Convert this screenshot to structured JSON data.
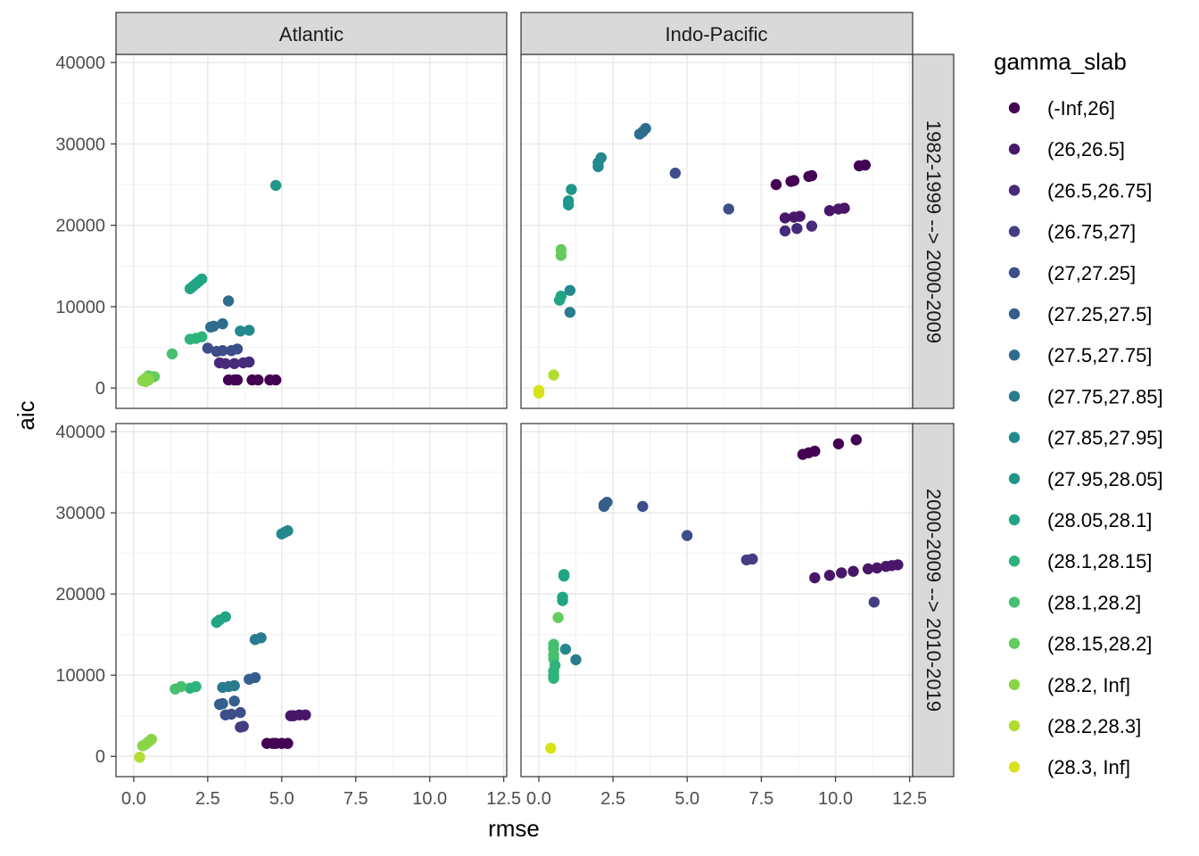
{
  "chart_data": {
    "type": "scatter",
    "facets": {
      "columns": [
        "Atlantic",
        "Indo-Pacific"
      ],
      "rows": [
        "1982-1999 --> 2000-2009",
        "2000-2009 --> 2010-2019"
      ]
    },
    "xlabel": "rmse",
    "ylabel": "aic",
    "xlim": [
      -0.6,
      12.6
    ],
    "ylim": [
      -2500,
      41000
    ],
    "x_ticks": [
      0.0,
      2.5,
      5.0,
      7.5,
      10.0,
      12.5
    ],
    "x_tick_labels": [
      "0.0",
      "2.5",
      "5.0",
      "7.5",
      "10.0",
      "12.5"
    ],
    "y_ticks": [
      0,
      10000,
      20000,
      30000,
      40000
    ],
    "y_tick_labels": [
      "0",
      "10000",
      "20000",
      "30000",
      "40000"
    ],
    "grid": true,
    "legend": {
      "title": "gamma_slab",
      "position": "right",
      "entries": [
        {
          "label": "(-Inf,26]",
          "color": "#440154"
        },
        {
          "label": "(26,26.5]",
          "color": "#481769"
        },
        {
          "label": "(26.5,26.75]",
          "color": "#472A7A"
        },
        {
          "label": "(26.75,27]",
          "color": "#433D84"
        },
        {
          "label": "(27,27.25]",
          "color": "#3D4E8A"
        },
        {
          "label": "(27.25,27.5]",
          "color": "#355E8D"
        },
        {
          "label": "(27.5,27.75]",
          "color": "#2E6D8E"
        },
        {
          "label": "(27.75,27.85]",
          "color": "#297B8E"
        },
        {
          "label": "(27.85,27.95]",
          "color": "#23898E"
        },
        {
          "label": "(27.95,28.05]",
          "color": "#1F978B"
        },
        {
          "label": "(28.05,28.1]",
          "color": "#21A585"
        },
        {
          "label": "(28.1,28.15]",
          "color": "#2EB37C"
        },
        {
          "label": "(28.1,28.2]",
          "color": "#46C06F"
        },
        {
          "label": "(28.15,28.2]",
          "color": "#65CB5E"
        },
        {
          "label": "(28.2, Inf]",
          "color": "#89D548"
        },
        {
          "label": "(28.2,28.3]",
          "color": "#B0DD2F"
        },
        {
          "label": "(28.3, Inf]",
          "color": "#D8E219"
        }
      ],
      "extra_color": "#FDE725"
    },
    "panels": [
      {
        "column": "Atlantic",
        "row": "1982-1999 --> 2000-2009",
        "points": [
          [
            4.8,
            24900,
            9
          ],
          [
            2.3,
            13400,
            10
          ],
          [
            2.2,
            13100,
            10
          ],
          [
            2.1,
            12800,
            10
          ],
          [
            2.0,
            12500,
            10
          ],
          [
            1.9,
            12200,
            10
          ],
          [
            3.2,
            10700,
            6
          ],
          [
            3.9,
            7100,
            8
          ],
          [
            3.6,
            7000,
            8
          ],
          [
            3.0,
            7900,
            6
          ],
          [
            2.7,
            7600,
            6
          ],
          [
            2.6,
            7500,
            6
          ],
          [
            2.3,
            6300,
            11
          ],
          [
            2.1,
            6100,
            11
          ],
          [
            1.9,
            6000,
            11
          ],
          [
            2.5,
            4900,
            4
          ],
          [
            2.8,
            4500,
            4
          ],
          [
            3.0,
            4600,
            4
          ],
          [
            3.3,
            4600,
            4
          ],
          [
            3.5,
            4800,
            4
          ],
          [
            1.3,
            4200,
            12
          ],
          [
            2.9,
            3100,
            2
          ],
          [
            3.1,
            3000,
            2
          ],
          [
            3.4,
            3000,
            2
          ],
          [
            3.7,
            3100,
            2
          ],
          [
            3.9,
            3200,
            2
          ],
          [
            3.2,
            1000,
            0
          ],
          [
            3.4,
            1000,
            0
          ],
          [
            3.5,
            1000,
            0
          ],
          [
            4.0,
            1000,
            0
          ],
          [
            4.2,
            1000,
            0
          ],
          [
            4.6,
            1000,
            0
          ],
          [
            4.8,
            1000,
            0
          ],
          [
            0.5,
            1500,
            13
          ],
          [
            0.7,
            1400,
            13
          ],
          [
            0.4,
            1200,
            14
          ],
          [
            0.5,
            1100,
            14
          ],
          [
            0.3,
            900,
            14
          ],
          [
            0.4,
            800,
            14
          ],
          [
            0.5,
            1000,
            14
          ]
        ]
      },
      {
        "column": "Indo-Pacific",
        "row": "1982-1999 --> 2000-2009",
        "points": [
          [
            3.6,
            31900,
            6
          ],
          [
            3.5,
            31500,
            6
          ],
          [
            3.4,
            31200,
            6
          ],
          [
            2.1,
            28300,
            8
          ],
          [
            2.0,
            27700,
            8
          ],
          [
            2.0,
            27200,
            8
          ],
          [
            4.6,
            26400,
            4
          ],
          [
            11.0,
            27400,
            0
          ],
          [
            10.8,
            27300,
            0
          ],
          [
            9.2,
            26100,
            0
          ],
          [
            9.1,
            26000,
            0
          ],
          [
            8.6,
            25500,
            0
          ],
          [
            8.5,
            25400,
            0
          ],
          [
            8.0,
            25000,
            0
          ],
          [
            1.1,
            24400,
            9
          ],
          [
            1.0,
            23000,
            9
          ],
          [
            1.0,
            22500,
            9
          ],
          [
            6.4,
            22000,
            4
          ],
          [
            10.3,
            22100,
            1
          ],
          [
            10.1,
            22000,
            1
          ],
          [
            9.8,
            21800,
            1
          ],
          [
            8.8,
            21100,
            1
          ],
          [
            8.6,
            21000,
            1
          ],
          [
            8.3,
            20900,
            1
          ],
          [
            9.2,
            19900,
            2
          ],
          [
            8.7,
            19600,
            2
          ],
          [
            8.3,
            19300,
            2
          ],
          [
            0.75,
            17000,
            13
          ],
          [
            0.75,
            16300,
            13
          ],
          [
            1.05,
            12000,
            8
          ],
          [
            0.75,
            11300,
            10
          ],
          [
            0.7,
            10800,
            10
          ],
          [
            1.05,
            9300,
            7
          ],
          [
            0.5,
            1600,
            15
          ],
          [
            0.0,
            -300,
            16
          ],
          [
            0.0,
            -600,
            16
          ]
        ]
      },
      {
        "column": "Atlantic",
        "row": "2000-2009 --> 2010-2019",
        "points": [
          [
            5.2,
            27800,
            8
          ],
          [
            5.1,
            27600,
            8
          ],
          [
            5.0,
            27400,
            8
          ],
          [
            3.1,
            17200,
            10
          ],
          [
            2.9,
            16800,
            10
          ],
          [
            2.8,
            16500,
            10
          ],
          [
            4.3,
            14600,
            7
          ],
          [
            4.1,
            14400,
            7
          ],
          [
            4.1,
            9700,
            5
          ],
          [
            3.9,
            9500,
            5
          ],
          [
            3.4,
            8700,
            7
          ],
          [
            3.2,
            8600,
            7
          ],
          [
            3.0,
            8500,
            7
          ],
          [
            2.1,
            8600,
            11
          ],
          [
            1.9,
            8400,
            11
          ],
          [
            1.6,
            8600,
            12
          ],
          [
            1.4,
            8300,
            12
          ],
          [
            3.4,
            6800,
            5
          ],
          [
            3.0,
            6500,
            5
          ],
          [
            2.9,
            6400,
            5
          ],
          [
            3.6,
            5400,
            4
          ],
          [
            3.3,
            5200,
            4
          ],
          [
            3.1,
            5100,
            4
          ],
          [
            3.7,
            3700,
            3
          ],
          [
            3.6,
            3600,
            3
          ],
          [
            5.8,
            5100,
            1
          ],
          [
            5.6,
            5100,
            1
          ],
          [
            5.4,
            5000,
            1
          ],
          [
            5.3,
            5000,
            1
          ],
          [
            4.5,
            1600,
            0
          ],
          [
            4.7,
            1600,
            0
          ],
          [
            4.8,
            1600,
            0
          ],
          [
            5.0,
            1600,
            0
          ],
          [
            5.2,
            1600,
            0
          ],
          [
            0.6,
            2100,
            14
          ],
          [
            0.5,
            1800,
            14
          ],
          [
            0.4,
            1500,
            14
          ],
          [
            0.3,
            1300,
            14
          ],
          [
            0.2,
            -100,
            15
          ]
        ]
      },
      {
        "column": "Indo-Pacific",
        "row": "2000-2009 --> 2010-2019",
        "points": [
          [
            10.7,
            39000,
            0
          ],
          [
            10.1,
            38500,
            0
          ],
          [
            9.3,
            37600,
            0
          ],
          [
            9.1,
            37400,
            0
          ],
          [
            8.9,
            37200,
            0
          ],
          [
            2.3,
            31300,
            5
          ],
          [
            2.2,
            31000,
            5
          ],
          [
            2.2,
            30800,
            5
          ],
          [
            3.5,
            30800,
            4
          ],
          [
            5.0,
            27200,
            4
          ],
          [
            7.2,
            24300,
            3
          ],
          [
            7.0,
            24200,
            3
          ],
          [
            12.1,
            23600,
            1
          ],
          [
            11.9,
            23500,
            1
          ],
          [
            11.7,
            23400,
            1
          ],
          [
            11.4,
            23200,
            1
          ],
          [
            11.1,
            23100,
            1
          ],
          [
            10.6,
            22800,
            1
          ],
          [
            10.2,
            22600,
            1
          ],
          [
            9.8,
            22300,
            1
          ],
          [
            9.3,
            22000,
            1
          ],
          [
            11.3,
            19000,
            3
          ],
          [
            0.85,
            22400,
            10
          ],
          [
            0.85,
            22200,
            10
          ],
          [
            0.8,
            19600,
            10
          ],
          [
            0.8,
            19200,
            10
          ],
          [
            0.65,
            17100,
            13
          ],
          [
            0.5,
            13800,
            12
          ],
          [
            0.5,
            13300,
            12
          ],
          [
            0.5,
            12500,
            12
          ],
          [
            0.5,
            12000,
            12
          ],
          [
            0.55,
            11200,
            11
          ],
          [
            0.5,
            10500,
            11
          ],
          [
            0.5,
            9900,
            11
          ],
          [
            0.5,
            9600,
            11
          ],
          [
            0.9,
            13200,
            8
          ],
          [
            1.25,
            11900,
            7
          ],
          [
            0.4,
            1000,
            16
          ]
        ]
      }
    ]
  }
}
